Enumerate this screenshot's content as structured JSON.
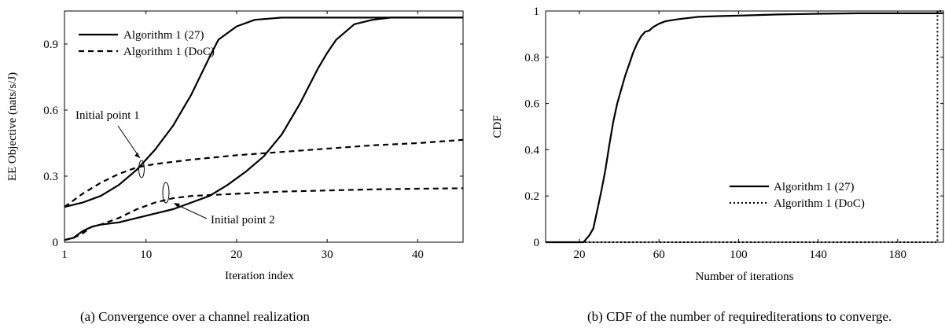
{
  "captions": {
    "a": "(a)  Convergence over a channel realization",
    "b": "(b)  CDF of the number of requirediterations to converge."
  },
  "chart_data": [
    {
      "type": "line",
      "xlabel": "Iteration index",
      "ylabel": "EE Objective (nats/s/J)",
      "xlim": [
        1,
        45
      ],
      "ylim": [
        0,
        1.05
      ],
      "xticks": [
        1,
        10,
        20,
        30,
        40
      ],
      "yticks": [
        0,
        0.3,
        0.6,
        0.9
      ],
      "ytick_labels": [
        "0",
        "0.3",
        "0.6",
        "0.9"
      ],
      "grid": false,
      "legend_position": "top-left",
      "legend": [
        {
          "label": "Algorithm 1 (27)",
          "style": "solid"
        },
        {
          "label": "Algorithm 1 (DoC)",
          "style": "dashed"
        }
      ],
      "annotations": [
        "Initial point 1",
        "Initial point 2"
      ],
      "series": [
        {
          "legend": "Algorithm 1 (27)",
          "style": "solid",
          "annotation": "Initial point 1",
          "x": [
            1,
            3,
            5,
            7,
            9,
            11,
            13,
            15,
            17,
            18,
            20,
            22,
            25,
            30,
            35,
            40,
            45
          ],
          "y": [
            0.16,
            0.18,
            0.21,
            0.26,
            0.33,
            0.42,
            0.53,
            0.67,
            0.84,
            0.92,
            0.98,
            1.01,
            1.02,
            1.02,
            1.02,
            1.02,
            1.02
          ]
        },
        {
          "legend": "Algorithm 1 (27)",
          "style": "solid",
          "annotation": "Initial point 2",
          "x": [
            1,
            2,
            3,
            4,
            5,
            7,
            9,
            11,
            13,
            15,
            17,
            19,
            21,
            23,
            25,
            27,
            29,
            30,
            31,
            33,
            35,
            37,
            40,
            45
          ],
          "y": [
            0.01,
            0.02,
            0.05,
            0.07,
            0.08,
            0.09,
            0.11,
            0.13,
            0.15,
            0.18,
            0.21,
            0.26,
            0.32,
            0.39,
            0.49,
            0.63,
            0.79,
            0.86,
            0.92,
            0.99,
            1.01,
            1.02,
            1.02,
            1.02
          ]
        },
        {
          "legend": "Algorithm 1 (DoC)",
          "style": "dashed",
          "annotation": "Initial point 1",
          "x": [
            1,
            3,
            5,
            7,
            9,
            11,
            13,
            15,
            20,
            25,
            30,
            35,
            40,
            45
          ],
          "y": [
            0.16,
            0.22,
            0.27,
            0.31,
            0.34,
            0.355,
            0.365,
            0.375,
            0.395,
            0.41,
            0.425,
            0.44,
            0.45,
            0.465
          ]
        },
        {
          "legend": "Algorithm 1 (DoC)",
          "style": "dashed",
          "annotation": "Initial point 2",
          "x": [
            1,
            2,
            3,
            4,
            5,
            7,
            9,
            11,
            13,
            15,
            20,
            25,
            30,
            35,
            40,
            45
          ],
          "y": [
            0.01,
            0.02,
            0.04,
            0.07,
            0.08,
            0.11,
            0.15,
            0.18,
            0.2,
            0.21,
            0.22,
            0.23,
            0.235,
            0.24,
            0.243,
            0.245
          ]
        }
      ]
    },
    {
      "type": "line",
      "xlabel": "Number of iterations",
      "ylabel": "CDF",
      "xlim": [
        3,
        203
      ],
      "ylim": [
        0,
        1
      ],
      "xticks": [
        20,
        60,
        100,
        140,
        180
      ],
      "yticks": [
        0,
        0.2,
        0.4,
        0.6,
        0.8,
        1
      ],
      "ytick_labels": [
        "0",
        "0.2",
        "0.4",
        "0.6",
        "0.8",
        "1"
      ],
      "grid": false,
      "legend_position": "bottom-right",
      "legend": [
        {
          "label": "Algorithm 1 (27)",
          "style": "solid"
        },
        {
          "label": "Algorithm 1 (DoC)",
          "style": "dotted"
        }
      ],
      "series": [
        {
          "name": "Algorithm 1 (27)",
          "style": "solid",
          "x": [
            3,
            22,
            25,
            27,
            29,
            31,
            33,
            35,
            37,
            39,
            41,
            43,
            45,
            47,
            49,
            51,
            53,
            55,
            57,
            60,
            63,
            66,
            70,
            75,
            80,
            90,
            100,
            120,
            140,
            160,
            180,
            203
          ],
          "y": [
            0,
            0,
            0.03,
            0.06,
            0.14,
            0.22,
            0.31,
            0.42,
            0.52,
            0.6,
            0.66,
            0.72,
            0.77,
            0.82,
            0.86,
            0.89,
            0.91,
            0.915,
            0.93,
            0.945,
            0.955,
            0.96,
            0.965,
            0.97,
            0.975,
            0.978,
            0.98,
            0.985,
            0.988,
            0.99,
            0.99,
            0.99
          ]
        },
        {
          "name": "Algorithm 1 (DoC)",
          "style": "dotted",
          "x": [
            3,
            200,
            200,
            203
          ],
          "y": [
            0,
            0,
            1,
            1
          ]
        }
      ]
    }
  ]
}
